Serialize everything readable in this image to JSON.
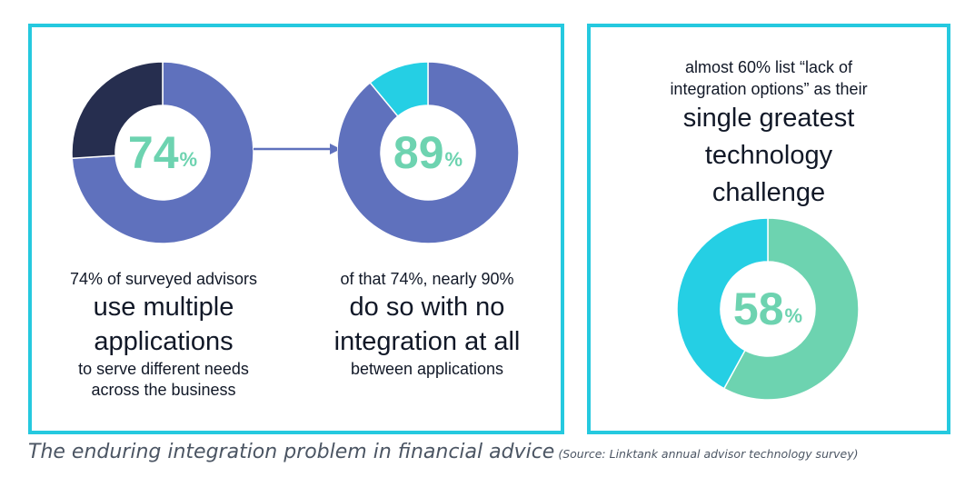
{
  "colors": {
    "border": "#25c9df",
    "primary": "#5f71bd",
    "dark": "#262e4f",
    "cyan": "#25cfe4",
    "mint": "#6dd3b0",
    "text": "#111827"
  },
  "chart_data": [
    {
      "type": "pie",
      "style": "donut",
      "center_value": "74",
      "center_unit": "%",
      "slices": [
        {
          "value": 74,
          "color": "#5f71bd"
        },
        {
          "value": 26,
          "color": "#262e4f"
        }
      ]
    },
    {
      "type": "pie",
      "style": "donut",
      "center_value": "89",
      "center_unit": "%",
      "slices": [
        {
          "value": 89,
          "color": "#5f71bd"
        },
        {
          "value": 11,
          "color": "#25cfe4"
        }
      ]
    },
    {
      "type": "pie",
      "style": "donut",
      "center_value": "58",
      "center_unit": "%",
      "slices": [
        {
          "value": 58,
          "color": "#6dd3b0"
        },
        {
          "value": 42,
          "color": "#25cfe4"
        }
      ]
    }
  ],
  "captions": {
    "left": {
      "line1": "74% of surveyed advisors",
      "big1": "use multiple",
      "big2": "applications",
      "line2": "to serve different needs",
      "line3": "across the business"
    },
    "middle": {
      "line1": "of that 74%, nearly 90%",
      "big1": "do so with no",
      "big2": "integration at all",
      "line2": "between applications"
    },
    "right": {
      "line1": "almost 60% list “lack of",
      "line2": "integration options” as their",
      "big1": "single greatest",
      "big2": "technology",
      "big3": "challenge"
    }
  },
  "footer": {
    "title": "The enduring integration problem in financial advice",
    "source": "(Source: Linktank annual advisor technology survey)"
  }
}
